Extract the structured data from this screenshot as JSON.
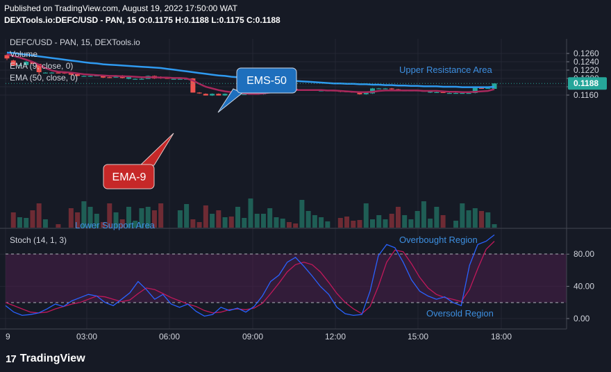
{
  "header": {
    "published": "Published on TradingView.com, August 19, 2022 17:50:00 WAT",
    "symbol_line": "DEXTools.io:DEFC/USD - PAN, 15  O:0.1175 H:0.1188 L:0.1175 C:0.1188"
  },
  "legend": {
    "title": "DEFC/USD - PAN, 15, DEXTools.io",
    "volume": "Volume",
    "ema9": "EMA (9, close, 0)",
    "ema50": "EMA (50, close, 0)",
    "stoch": "Stoch (14, 1, 3)"
  },
  "annotations": {
    "ems50": "EMS-50",
    "ema9": "EMA-9",
    "upper": "Upper Resistance Area",
    "lower": "Lower Support Area",
    "overbought": "Overbought Region",
    "oversold": "Oversold Region"
  },
  "last_price_label": "0.1188",
  "footer": {
    "brand": "TradingView",
    "logo": "17"
  },
  "colors": {
    "background": "#161a25",
    "up": "#26a69a",
    "down": "#ef5350",
    "ema9": "#a8285c",
    "ema50": "#2f9af0",
    "stoch_k": "#2962ff",
    "stoch_d": "#c2185b",
    "callout_blue": "#1e6fbd",
    "callout_red": "#c62828"
  },
  "chart_data": {
    "type": "candlestick",
    "price_axis": {
      "ticks": [
        "0.1260",
        "0.1240",
        "0.1220",
        "0.1200",
        "0.1180",
        "0.1160"
      ]
    },
    "time_axis": {
      "ticks": [
        "9",
        "03:00",
        "06:00",
        "09:00",
        "12:00",
        "15:00",
        "18:00"
      ]
    },
    "stoch_axis": {
      "ticks": [
        "80.00",
        "40.00",
        "0.00"
      ],
      "band": [
        20,
        80
      ]
    },
    "candles": [
      {
        "o": 0.1256,
        "h": 0.1258,
        "l": 0.1244,
        "c": 0.1248
      },
      {
        "o": 0.1243,
        "h": 0.1245,
        "l": 0.1231,
        "c": 0.1231
      },
      {
        "o": 0.1232,
        "h": 0.1234,
        "l": 0.1232,
        "c": 0.1232
      },
      {
        "o": 0.1232,
        "h": 0.1242,
        "l": 0.1232,
        "c": 0.124
      },
      {
        "o": 0.1239,
        "h": 0.1241,
        "l": 0.1235,
        "c": 0.1235
      },
      {
        "o": 0.1235,
        "h": 0.1235,
        "l": 0.1209,
        "c": 0.1215
      },
      {
        "o": 0.1214,
        "h": 0.1215,
        "l": 0.1213,
        "c": 0.1214
      },
      {
        "o": 0.1214,
        "h": 0.1215,
        "l": 0.1213,
        "c": 0.1214
      },
      {
        "o": 0.1214,
        "h": 0.1215,
        "l": 0.1212,
        "c": 0.1213
      },
      {
        "o": 0.1214,
        "h": 0.1215,
        "l": 0.1211,
        "c": 0.1212
      },
      {
        "o": 0.1215,
        "h": 0.1216,
        "l": 0.1208,
        "c": 0.1209
      },
      {
        "o": 0.121,
        "h": 0.1211,
        "l": 0.1205,
        "c": 0.1206
      },
      {
        "o": 0.1206,
        "h": 0.1207,
        "l": 0.1205,
        "c": 0.1206
      },
      {
        "o": 0.1206,
        "h": 0.1207,
        "l": 0.1205,
        "c": 0.1206
      },
      {
        "o": 0.1205,
        "h": 0.121,
        "l": 0.1205,
        "c": 0.1208
      },
      {
        "o": 0.1206,
        "h": 0.1207,
        "l": 0.1201,
        "c": 0.1202
      },
      {
        "o": 0.1203,
        "h": 0.1204,
        "l": 0.1201,
        "c": 0.1202
      },
      {
        "o": 0.1202,
        "h": 0.1208,
        "l": 0.1202,
        "c": 0.1207
      },
      {
        "o": 0.1207,
        "h": 0.1208,
        "l": 0.12,
        "c": 0.1201
      },
      {
        "o": 0.1199,
        "h": 0.1204,
        "l": 0.1198,
        "c": 0.1203
      },
      {
        "o": 0.1199,
        "h": 0.12,
        "l": 0.1199,
        "c": 0.1199
      },
      {
        "o": 0.1199,
        "h": 0.1201,
        "l": 0.1198,
        "c": 0.1199
      },
      {
        "o": 0.1199,
        "h": 0.1207,
        "l": 0.1199,
        "c": 0.1206
      },
      {
        "o": 0.1206,
        "h": 0.1207,
        "l": 0.1199,
        "c": 0.12
      },
      {
        "o": 0.1204,
        "h": 0.1205,
        "l": 0.1199,
        "c": 0.12
      },
      {
        "o": 0.1201,
        "h": 0.1202,
        "l": 0.1199,
        "c": 0.1199
      },
      {
        "o": 0.1199,
        "h": 0.12,
        "l": 0.1198,
        "c": 0.1199
      },
      {
        "o": 0.1199,
        "h": 0.12,
        "l": 0.1198,
        "c": 0.1199
      },
      {
        "o": 0.1199,
        "h": 0.12,
        "l": 0.1198,
        "c": 0.1199
      },
      {
        "o": 0.12,
        "h": 0.1201,
        "l": 0.1166,
        "c": 0.1166
      },
      {
        "o": 0.1166,
        "h": 0.1167,
        "l": 0.1163,
        "c": 0.1165
      },
      {
        "o": 0.1163,
        "h": 0.1164,
        "l": 0.1159,
        "c": 0.1159
      },
      {
        "o": 0.1159,
        "h": 0.1164,
        "l": 0.1158,
        "c": 0.1163
      },
      {
        "o": 0.1163,
        "h": 0.1164,
        "l": 0.1159,
        "c": 0.1159
      },
      {
        "o": 0.1159,
        "h": 0.1164,
        "l": 0.1158,
        "c": 0.1163
      },
      {
        "o": 0.1163,
        "h": 0.1164,
        "l": 0.1159,
        "c": 0.1159
      },
      {
        "o": 0.1161,
        "h": 0.1162,
        "l": 0.1161,
        "c": 0.1161
      },
      {
        "o": 0.1162,
        "h": 0.1163,
        "l": 0.1161,
        "c": 0.1162
      },
      {
        "o": 0.1163,
        "h": 0.1164,
        "l": 0.1162,
        "c": 0.1163
      },
      {
        "o": 0.1162,
        "h": 0.1164,
        "l": 0.1161,
        "c": 0.1163
      },
      {
        "o": 0.1162,
        "h": 0.1178,
        "l": 0.1161,
        "c": 0.1177
      },
      {
        "o": 0.1168,
        "h": 0.1178,
        "l": 0.1165,
        "c": 0.1176
      },
      {
        "o": 0.1176,
        "h": 0.1177,
        "l": 0.1175,
        "c": 0.1176
      },
      {
        "o": 0.1176,
        "h": 0.1178,
        "l": 0.1175,
        "c": 0.1177
      },
      {
        "o": 0.1175,
        "h": 0.1176,
        "l": 0.1173,
        "c": 0.1173
      },
      {
        "o": 0.1175,
        "h": 0.1176,
        "l": 0.1171,
        "c": 0.1172
      },
      {
        "o": 0.1172,
        "h": 0.1173,
        "l": 0.1171,
        "c": 0.1172
      },
      {
        "o": 0.1172,
        "h": 0.1173,
        "l": 0.1171,
        "c": 0.1172
      },
      {
        "o": 0.1172,
        "h": 0.1173,
        "l": 0.1171,
        "c": 0.1172
      },
      {
        "o": 0.1171,
        "h": 0.1172,
        "l": 0.117,
        "c": 0.1171
      },
      {
        "o": 0.1171,
        "h": 0.1172,
        "l": 0.117,
        "c": 0.1171
      },
      {
        "o": 0.1171,
        "h": 0.1172,
        "l": 0.1169,
        "c": 0.117
      },
      {
        "o": 0.117,
        "h": 0.1171,
        "l": 0.1167,
        "c": 0.1168
      },
      {
        "o": 0.1169,
        "h": 0.117,
        "l": 0.1167,
        "c": 0.1168
      },
      {
        "o": 0.1168,
        "h": 0.1169,
        "l": 0.1166,
        "c": 0.1167
      },
      {
        "o": 0.1167,
        "h": 0.1168,
        "l": 0.1161,
        "c": 0.1162
      },
      {
        "o": 0.1162,
        "h": 0.1169,
        "l": 0.1161,
        "c": 0.1168
      },
      {
        "o": 0.1164,
        "h": 0.1177,
        "l": 0.1163,
        "c": 0.1176
      },
      {
        "o": 0.1176,
        "h": 0.1177,
        "l": 0.1175,
        "c": 0.1176
      },
      {
        "o": 0.1176,
        "h": 0.1177,
        "l": 0.1175,
        "c": 0.1176
      },
      {
        "o": 0.1176,
        "h": 0.1177,
        "l": 0.1173,
        "c": 0.1174
      },
      {
        "o": 0.1174,
        "h": 0.1175,
        "l": 0.1171,
        "c": 0.1172
      },
      {
        "o": 0.1171,
        "h": 0.1172,
        "l": 0.117,
        "c": 0.1171
      },
      {
        "o": 0.1171,
        "h": 0.1172,
        "l": 0.117,
        "c": 0.1171
      },
      {
        "o": 0.1171,
        "h": 0.1172,
        "l": 0.117,
        "c": 0.1171
      },
      {
        "o": 0.117,
        "h": 0.1171,
        "l": 0.1169,
        "c": 0.117
      },
      {
        "o": 0.1166,
        "h": 0.1171,
        "l": 0.1165,
        "c": 0.117
      },
      {
        "o": 0.1167,
        "h": 0.1168,
        "l": 0.1166,
        "c": 0.1167
      },
      {
        "o": 0.1167,
        "h": 0.1168,
        "l": 0.1165,
        "c": 0.1166
      },
      {
        "o": 0.1165,
        "h": 0.1166,
        "l": 0.1164,
        "c": 0.1165
      },
      {
        "o": 0.1165,
        "h": 0.1166,
        "l": 0.1164,
        "c": 0.1165
      },
      {
        "o": 0.1165,
        "h": 0.1166,
        "l": 0.1164,
        "c": 0.1165
      },
      {
        "o": 0.1165,
        "h": 0.1166,
        "l": 0.1164,
        "c": 0.1165
      },
      {
        "o": 0.1165,
        "h": 0.1178,
        "l": 0.1164,
        "c": 0.1177
      },
      {
        "o": 0.1177,
        "h": 0.1178,
        "l": 0.1175,
        "c": 0.1176
      },
      {
        "o": 0.1176,
        "h": 0.1178,
        "l": 0.1175,
        "c": 0.1177
      },
      {
        "o": 0.1175,
        "h": 0.1188,
        "l": 0.1175,
        "c": 0.1188
      }
    ],
    "ema9": [
      0.1258,
      0.1254,
      0.125,
      0.1245,
      0.124,
      0.1233,
      0.1225,
      0.1219,
      0.1216,
      0.1215,
      0.1214,
      0.1212,
      0.121,
      0.1209,
      0.1208,
      0.1207,
      0.1206,
      0.1206,
      0.1205,
      0.1205,
      0.1204,
      0.1203,
      0.1203,
      0.1203,
      0.1202,
      0.1202,
      0.1201,
      0.1201,
      0.12,
      0.1195,
      0.1187,
      0.118,
      0.1176,
      0.1172,
      0.1169,
      0.1167,
      0.1165,
      0.1164,
      0.1163,
      0.1163,
      0.1164,
      0.1166,
      0.1168,
      0.117,
      0.1171,
      0.1172,
      0.1172,
      0.1172,
      0.1172,
      0.1172,
      0.1171,
      0.1171,
      0.117,
      0.1169,
      0.1168,
      0.1167,
      0.1167,
      0.1168,
      0.117,
      0.1171,
      0.1171,
      0.1171,
      0.1171,
      0.1171,
      0.1171,
      0.117,
      0.117,
      0.117,
      0.1169,
      0.1168,
      0.1168,
      0.1167,
      0.1167,
      0.1168,
      0.1169,
      0.117,
      0.1174
    ],
    "ema50": [
      0.1262,
      0.1261,
      0.1259,
      0.1257,
      0.1255,
      0.1253,
      0.1251,
      0.1249,
      0.1247,
      0.1245,
      0.1243,
      0.1241,
      0.1239,
      0.1237,
      0.1236,
      0.1234,
      0.1233,
      0.1232,
      0.1231,
      0.123,
      0.1229,
      0.1228,
      0.1227,
      0.1226,
      0.1225,
      0.1223,
      0.1221,
      0.1219,
      0.1217,
      0.1215,
      0.1213,
      0.1211,
      0.1209,
      0.1207,
      0.1206,
      0.1204,
      0.1203,
      0.1202,
      0.1201,
      0.12,
      0.1199,
      0.1198,
      0.1197,
      0.1196,
      0.1195,
      0.1194,
      0.1193,
      0.1192,
      0.1191,
      0.119,
      0.1189,
      0.1188,
      0.1188,
      0.1187,
      0.1187,
      0.1186,
      0.1186,
      0.1185,
      0.1185,
      0.1184,
      0.1184,
      0.1183,
      0.1183,
      0.1182,
      0.1182,
      0.1181,
      0.1181,
      0.1181,
      0.118,
      0.118,
      0.118,
      0.1179,
      0.1179,
      0.1179,
      0.1179,
      0.1179,
      0.118
    ],
    "volume": [
      0,
      22,
      15,
      14,
      25,
      35,
      12,
      0,
      5,
      0,
      28,
      22,
      38,
      30,
      20,
      8,
      35,
      22,
      12,
      30,
      10,
      28,
      30,
      25,
      35,
      0,
      0,
      25,
      34,
      12,
      8,
      32,
      20,
      25,
      15,
      16,
      30,
      14,
      42,
      20,
      20,
      28,
      15,
      13,
      8,
      6,
      40,
      24,
      18,
      15,
      9,
      0,
      14,
      16,
      10,
      11,
      35,
      12,
      18,
      12,
      20,
      30,
      18,
      12,
      24,
      38,
      13,
      30,
      18,
      0,
      10,
      35,
      25,
      28,
      24,
      22,
      5
    ],
    "stoch_k": [
      16,
      8,
      4,
      5,
      7,
      12,
      18,
      15,
      22,
      26,
      30,
      28,
      20,
      16,
      24,
      32,
      46,
      36,
      24,
      30,
      18,
      14,
      18,
      9,
      3,
      5,
      14,
      10,
      13,
      8,
      15,
      28,
      46,
      54,
      70,
      76,
      65,
      53,
      40,
      30,
      14,
      6,
      4,
      5,
      34,
      78,
      92,
      88,
      70,
      48,
      34,
      28,
      24,
      27,
      20,
      16,
      66,
      92,
      96,
      104
    ],
    "stoch_d": [
      20,
      16,
      12,
      8,
      7,
      8,
      12,
      15,
      18,
      20,
      24,
      28,
      27,
      24,
      21,
      23,
      31,
      38,
      36,
      31,
      26,
      22,
      18,
      15,
      10,
      7,
      8,
      11,
      12,
      11,
      13,
      19,
      31,
      44,
      58,
      67,
      70,
      67,
      58,
      45,
      31,
      20,
      12,
      6,
      15,
      40,
      70,
      85,
      83,
      68,
      51,
      38,
      30,
      26,
      24,
      21,
      36,
      62,
      86,
      96
    ]
  }
}
